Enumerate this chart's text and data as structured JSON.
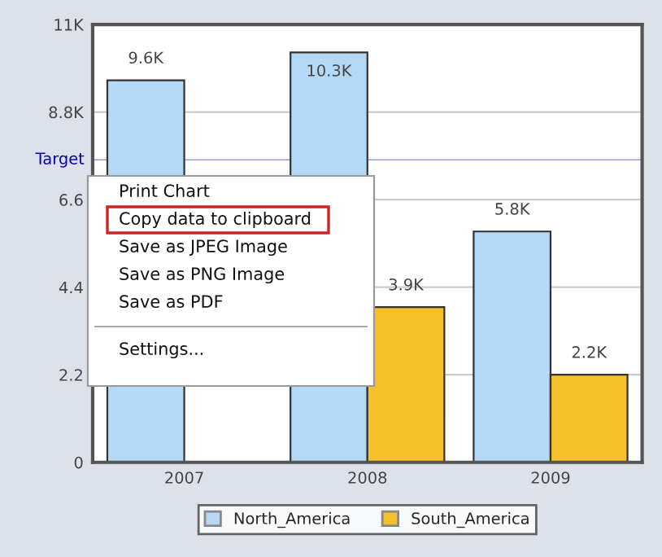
{
  "chart_data": {
    "type": "bar",
    "categories": [
      "2007",
      "2008",
      "2009"
    ],
    "series": [
      {
        "name": "North_America",
        "color": "#b3d9f7",
        "values": [
          9.6,
          10.3,
          5.8
        ],
        "value_labels": [
          "9.6K",
          "10.3K",
          "5.8K"
        ]
      },
      {
        "name": "South_America",
        "color": "#f5c02a",
        "values": [
          null,
          3.9,
          2.2
        ],
        "value_labels": [
          null,
          "3.9K",
          "2.2K"
        ]
      }
    ],
    "ylim": [
      0,
      11
    ],
    "yticks": [
      0,
      2.2,
      4.4,
      6.6,
      {
        "value": 8.8,
        "label": "8.8K"
      },
      {
        "value": 11,
        "label": "11K"
      }
    ],
    "ref_lines": [
      {
        "axis": "y",
        "value": 7.6,
        "label": "Target",
        "color": "#0000aa"
      }
    ],
    "grid": "y",
    "legend": "bottom",
    "annotations": [
      "Print Chart",
      "Copy data to clipboard",
      "Save as JPEG Image",
      "Save as PNG Image",
      "Save as PDF",
      "Settings..."
    ]
  }
}
